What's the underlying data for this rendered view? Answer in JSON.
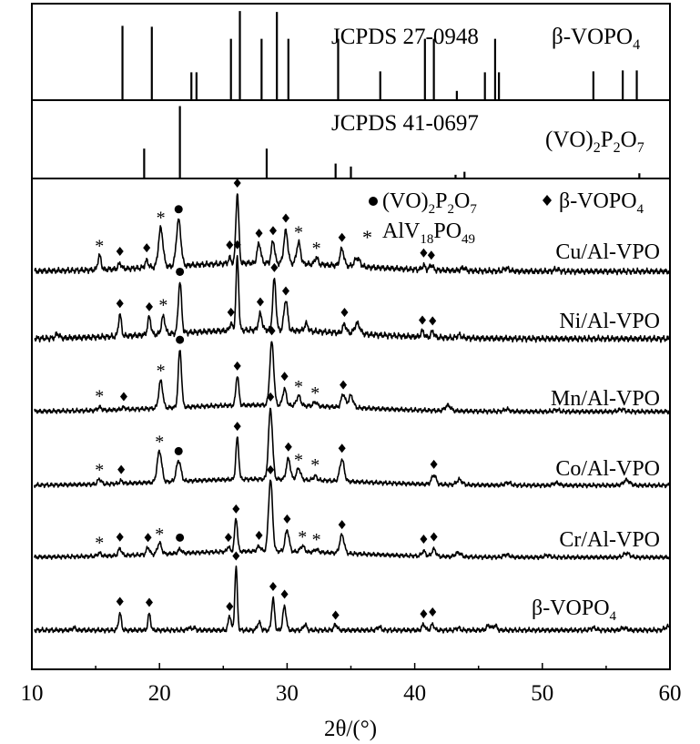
{
  "chart_data": {
    "type": "line",
    "xlabel": "2θ/(°)",
    "xlim": [
      10,
      60
    ],
    "x_ticks": [
      10,
      20,
      30,
      40,
      50,
      60
    ],
    "grid": false,
    "reference_panels": [
      {
        "label": "JCPDS 27-0948",
        "phase": "β-VOPO",
        "phase_sub": "4",
        "peaks": [
          [
            17.1,
            0.8
          ],
          [
            19.4,
            0.79
          ],
          [
            22.5,
            0.3
          ],
          [
            22.9,
            0.3
          ],
          [
            25.6,
            0.66
          ],
          [
            26.3,
            0.96
          ],
          [
            28.0,
            0.66
          ],
          [
            29.2,
            0.95
          ],
          [
            30.1,
            0.66
          ],
          [
            34.0,
            0.66
          ],
          [
            37.3,
            0.31
          ],
          [
            40.8,
            0.66
          ],
          [
            41.5,
            0.66
          ],
          [
            43.3,
            0.1
          ],
          [
            45.5,
            0.3
          ],
          [
            46.3,
            0.66
          ],
          [
            46.6,
            0.3
          ],
          [
            54.0,
            0.31
          ],
          [
            56.3,
            0.32
          ],
          [
            57.4,
            0.32
          ]
        ]
      },
      {
        "label": "JCPDS 41-0697",
        "phase_parts": [
          "(VO)",
          "2",
          "P",
          "2",
          "O",
          "7"
        ],
        "peaks": [
          [
            18.8,
            0.4
          ],
          [
            21.6,
            0.97
          ],
          [
            28.4,
            0.4
          ],
          [
            33.8,
            0.2
          ],
          [
            35.0,
            0.16
          ],
          [
            43.2,
            0.05
          ],
          [
            43.9,
            0.09
          ],
          [
            57.6,
            0.07
          ]
        ]
      }
    ],
    "legend": {
      "circle_label_parts": [
        "(VO)",
        "2",
        "P",
        "2",
        "O",
        "7"
      ],
      "diamond_label": "β-VOPO",
      "diamond_sub": "4",
      "star_label_parts": [
        "AlV",
        "18",
        "PO",
        "49"
      ]
    },
    "series": [
      {
        "name": "Cu/Al-VPO",
        "baseline": 0.18,
        "peaks": [
          [
            15.3,
            0.2,
            0.18
          ],
          [
            16.9,
            0.08,
            0.18
          ],
          [
            19.0,
            0.1,
            0.18
          ],
          [
            20.1,
            0.55,
            0.25
          ],
          [
            21.5,
            0.65,
            0.25
          ],
          [
            25.5,
            0.08,
            0.15
          ],
          [
            26.1,
            1.0,
            0.16
          ],
          [
            27.8,
            0.28,
            0.2
          ],
          [
            28.9,
            0.32,
            0.18
          ],
          [
            29.9,
            0.46,
            0.22
          ],
          [
            30.9,
            0.3,
            0.22
          ],
          [
            32.3,
            0.1,
            0.18
          ],
          [
            34.3,
            0.24,
            0.22
          ],
          [
            35.5,
            0.12,
            0.3
          ],
          [
            40.7,
            0.06,
            0.18
          ],
          [
            41.3,
            0.07,
            0.18
          ],
          [
            43.8,
            0.04,
            0.25
          ],
          [
            47.2,
            0.04,
            0.3
          ],
          [
            51.1,
            0.03,
            0.3
          ]
        ],
        "markers": [
          {
            "x": 15.3,
            "m": "star"
          },
          {
            "x": 16.9,
            "m": "diamond"
          },
          {
            "x": 19.0,
            "m": "diamond"
          },
          {
            "x": 20.1,
            "m": "star"
          },
          {
            "x": 21.5,
            "m": "circle"
          },
          {
            "x": 25.5,
            "m": "diamond"
          },
          {
            "x": 26.1,
            "m": "diamond"
          },
          {
            "x": 27.8,
            "m": "diamond"
          },
          {
            "x": 28.9,
            "m": "diamond"
          },
          {
            "x": 29.9,
            "m": "diamond"
          },
          {
            "x": 30.9,
            "m": "star"
          },
          {
            "x": 32.3,
            "m": "star"
          },
          {
            "x": 34.3,
            "m": "diamond"
          },
          {
            "x": 40.7,
            "m": "diamond"
          },
          {
            "x": 41.3,
            "m": "diamond"
          }
        ]
      },
      {
        "name": "Ni/Al-VPO",
        "baseline": 0.15,
        "peaks": [
          [
            12.0,
            0.06,
            0.2
          ],
          [
            16.9,
            0.3,
            0.16
          ],
          [
            19.2,
            0.24,
            0.18
          ],
          [
            20.3,
            0.24,
            0.2
          ],
          [
            21.6,
            0.7,
            0.18
          ],
          [
            25.6,
            0.1,
            0.15
          ],
          [
            26.1,
            1.0,
            0.15
          ],
          [
            27.9,
            0.22,
            0.2
          ],
          [
            29.0,
            0.7,
            0.18
          ],
          [
            29.9,
            0.42,
            0.2
          ],
          [
            31.5,
            0.1,
            0.2
          ],
          [
            34.5,
            0.12,
            0.2
          ],
          [
            35.5,
            0.14,
            0.3
          ],
          [
            40.6,
            0.08,
            0.18
          ],
          [
            41.4,
            0.08,
            0.18
          ],
          [
            43.5,
            0.04,
            0.25
          ]
        ],
        "markers": [
          {
            "x": 16.9,
            "m": "diamond"
          },
          {
            "x": 19.2,
            "m": "diamond"
          },
          {
            "x": 20.3,
            "m": "star"
          },
          {
            "x": 21.6,
            "m": "circle"
          },
          {
            "x": 25.6,
            "m": "diamond"
          },
          {
            "x": 26.1,
            "m": "diamond"
          },
          {
            "x": 27.9,
            "m": "diamond"
          },
          {
            "x": 29.0,
            "m": "diamond"
          },
          {
            "x": 29.9,
            "m": "diamond"
          },
          {
            "x": 34.5,
            "m": "diamond"
          },
          {
            "x": 40.6,
            "m": "diamond"
          },
          {
            "x": 41.4,
            "m": "diamond"
          }
        ]
      },
      {
        "name": "Mn/Al-VPO",
        "baseline": 0.08,
        "peaks": [
          [
            15.3,
            0.06,
            0.2
          ],
          [
            17.2,
            0.04,
            0.2
          ],
          [
            20.1,
            0.5,
            0.22
          ],
          [
            21.6,
            1.05,
            0.18
          ],
          [
            26.1,
            0.55,
            0.16
          ],
          [
            28.8,
            1.15,
            0.22
          ],
          [
            29.8,
            0.3,
            0.2
          ],
          [
            30.9,
            0.18,
            0.22
          ],
          [
            32.2,
            0.08,
            0.2
          ],
          [
            34.4,
            0.24,
            0.22
          ],
          [
            35.0,
            0.22,
            0.25
          ],
          [
            42.6,
            0.1,
            0.3
          ],
          [
            47.2,
            0.04,
            0.3
          ],
          [
            51.1,
            0.03,
            0.3
          ],
          [
            56.2,
            0.04,
            0.35
          ]
        ],
        "markers": [
          {
            "x": 15.3,
            "m": "star"
          },
          {
            "x": 17.2,
            "m": "diamond"
          },
          {
            "x": 20.1,
            "m": "star"
          },
          {
            "x": 21.6,
            "m": "circle"
          },
          {
            "x": 26.1,
            "m": "diamond"
          },
          {
            "x": 28.8,
            "m": "diamond"
          },
          {
            "x": 29.8,
            "m": "diamond"
          },
          {
            "x": 30.9,
            "m": "star"
          },
          {
            "x": 32.2,
            "m": "star"
          },
          {
            "x": 34.4,
            "m": "diamond"
          }
        ]
      },
      {
        "name": "Co/Al-VPO",
        "baseline": 0.1,
        "peaks": [
          [
            15.3,
            0.1,
            0.2
          ],
          [
            17.0,
            0.05,
            0.2
          ],
          [
            20.0,
            0.6,
            0.25
          ],
          [
            21.5,
            0.4,
            0.25
          ],
          [
            26.1,
            0.8,
            0.16
          ],
          [
            28.7,
            1.35,
            0.22
          ],
          [
            30.1,
            0.4,
            0.22
          ],
          [
            30.9,
            0.22,
            0.22
          ],
          [
            32.2,
            0.08,
            0.2
          ],
          [
            34.3,
            0.42,
            0.24
          ],
          [
            41.5,
            0.18,
            0.25
          ],
          [
            43.5,
            0.1,
            0.3
          ],
          [
            47.3,
            0.05,
            0.3
          ],
          [
            51.1,
            0.05,
            0.3
          ],
          [
            56.6,
            0.1,
            0.35
          ]
        ],
        "markers": [
          {
            "x": 15.3,
            "m": "star"
          },
          {
            "x": 17.0,
            "m": "diamond"
          },
          {
            "x": 20.0,
            "m": "star"
          },
          {
            "x": 21.5,
            "m": "circle"
          },
          {
            "x": 26.1,
            "m": "diamond"
          },
          {
            "x": 28.7,
            "m": "diamond"
          },
          {
            "x": 30.1,
            "m": "diamond"
          },
          {
            "x": 30.9,
            "m": "star"
          },
          {
            "x": 32.2,
            "m": "star"
          },
          {
            "x": 34.3,
            "m": "diamond"
          },
          {
            "x": 41.5,
            "m": "diamond"
          }
        ]
      },
      {
        "name": "Cr/Al-VPO",
        "baseline": 0.1,
        "peaks": [
          [
            15.3,
            0.06,
            0.2
          ],
          [
            16.9,
            0.14,
            0.18
          ],
          [
            19.1,
            0.14,
            0.18
          ],
          [
            20.0,
            0.22,
            0.22
          ],
          [
            21.6,
            0.08,
            0.2
          ],
          [
            25.4,
            0.1,
            0.15
          ],
          [
            26.0,
            0.65,
            0.16
          ],
          [
            27.8,
            0.1,
            0.2
          ],
          [
            28.7,
            1.4,
            0.22
          ],
          [
            30.0,
            0.42,
            0.22
          ],
          [
            31.2,
            0.12,
            0.22
          ],
          [
            32.3,
            0.06,
            0.2
          ],
          [
            34.3,
            0.36,
            0.24
          ],
          [
            40.7,
            0.1,
            0.2
          ],
          [
            41.5,
            0.14,
            0.22
          ],
          [
            43.4,
            0.08,
            0.3
          ],
          [
            47.2,
            0.05,
            0.3
          ],
          [
            50.4,
            0.04,
            0.3
          ],
          [
            56.6,
            0.08,
            0.35
          ]
        ],
        "markers": [
          {
            "x": 15.3,
            "m": "star"
          },
          {
            "x": 16.9,
            "m": "diamond"
          },
          {
            "x": 19.1,
            "m": "diamond"
          },
          {
            "x": 20.0,
            "m": "star"
          },
          {
            "x": 21.6,
            "m": "circle"
          },
          {
            "x": 25.4,
            "m": "diamond"
          },
          {
            "x": 26.0,
            "m": "diamond"
          },
          {
            "x": 27.8,
            "m": "diamond"
          },
          {
            "x": 28.7,
            "m": "diamond"
          },
          {
            "x": 30.0,
            "m": "diamond"
          },
          {
            "x": 31.2,
            "m": "star"
          },
          {
            "x": 32.3,
            "m": "star"
          },
          {
            "x": 34.3,
            "m": "diamond"
          },
          {
            "x": 40.7,
            "m": "diamond"
          },
          {
            "x": 41.5,
            "m": "diamond"
          }
        ]
      },
      {
        "name": "β-VOPO",
        "name_sub": "4",
        "baseline": 0.03,
        "peaks": [
          [
            13.3,
            0.04,
            0.2
          ],
          [
            16.9,
            0.3,
            0.15
          ],
          [
            19.2,
            0.28,
            0.15
          ],
          [
            22.3,
            0.05,
            0.15
          ],
          [
            22.7,
            0.05,
            0.15
          ],
          [
            25.5,
            0.26,
            0.15
          ],
          [
            26.0,
            1.1,
            0.14
          ],
          [
            27.8,
            0.14,
            0.18
          ],
          [
            28.9,
            0.55,
            0.16
          ],
          [
            29.8,
            0.42,
            0.18
          ],
          [
            31.4,
            0.1,
            0.18
          ],
          [
            33.8,
            0.1,
            0.18
          ],
          [
            37.2,
            0.06,
            0.2
          ],
          [
            40.7,
            0.1,
            0.18
          ],
          [
            41.4,
            0.1,
            0.18
          ],
          [
            43.4,
            0.04,
            0.2
          ],
          [
            45.8,
            0.08,
            0.25
          ],
          [
            46.3,
            0.08,
            0.2
          ],
          [
            54.0,
            0.04,
            0.3
          ],
          [
            56.4,
            0.04,
            0.3
          ],
          [
            59.8,
            0.06,
            0.3
          ]
        ],
        "markers": [
          {
            "x": 16.9,
            "m": "diamond"
          },
          {
            "x": 19.2,
            "m": "diamond"
          },
          {
            "x": 25.5,
            "m": "diamond"
          },
          {
            "x": 26.0,
            "m": "diamond"
          },
          {
            "x": 28.9,
            "m": "diamond"
          },
          {
            "x": 29.8,
            "m": "diamond"
          },
          {
            "x": 33.8,
            "m": "diamond"
          },
          {
            "x": 40.7,
            "m": "diamond"
          },
          {
            "x": 41.4,
            "m": "diamond"
          }
        ]
      }
    ]
  }
}
